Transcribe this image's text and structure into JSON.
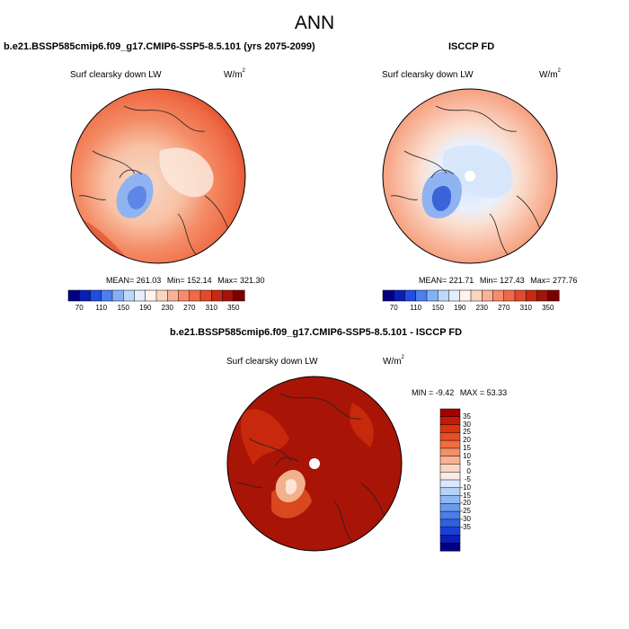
{
  "main_title": "ANN",
  "panels": [
    {
      "title": "b.e21.BSSP585cmip6.f09_g17.CMIP6-SSP5-8.5.101 (yrs 2075-2099)",
      "variable": "Surf clearsky down LW",
      "units_base": "W/m",
      "units_exp": "2",
      "stats": {
        "mean_label": "MEAN=",
        "mean": "261.03",
        "min_label": "Min=",
        "min": "152.14",
        "max_label": "Max=",
        "max": "321.30"
      }
    },
    {
      "title": "ISCCP FD",
      "variable": "Surf clearsky down LW",
      "units_base": "W/m",
      "units_exp": "2",
      "stats": {
        "mean_label": "MEAN=",
        "mean": "221.71",
        "min_label": "Min=",
        "min": "127.43",
        "max_label": "Max=",
        "max": "277.76"
      }
    },
    {
      "title": "b.e21.BSSP585cmip6.f09_g17.CMIP6-SSP5-8.5.101 - ISCCP FD",
      "variable": "Surf clearsky down LW",
      "units_base": "W/m",
      "units_exp": "2",
      "stats": {
        "min_label": "MIN =",
        "min": "-9.42",
        "max_label": "MAX =",
        "max": "53.33"
      }
    }
  ],
  "colorbar_abs": {
    "ticks": [
      "70",
      "110",
      "150",
      "190",
      "230",
      "270",
      "310",
      "350"
    ],
    "colors": [
      "#000080",
      "#0a1eb5",
      "#1f4ee0",
      "#4a80f0",
      "#85b0f5",
      "#bed8fb",
      "#e4eefd",
      "#fff4ec",
      "#fcd5c0",
      "#f9b296",
      "#f68c6c",
      "#f06a48",
      "#e14a2c",
      "#c72a14",
      "#a2140a",
      "#7a0000"
    ]
  },
  "colorbar_diff": {
    "ticks": [
      "35",
      "30",
      "25",
      "20",
      "15",
      "10",
      "5",
      "0",
      "-5",
      "-10",
      "-15",
      "-20",
      "-25",
      "-30",
      "-35"
    ],
    "colors": [
      "#a40000",
      "#c31b05",
      "#dc3410",
      "#ea4e22",
      "#f26c3e",
      "#f68e66",
      "#f9b294",
      "#fcd6c2",
      "#f8eae4",
      "#d9e8fb",
      "#b4d1f8",
      "#8fb7f2",
      "#6a9bec",
      "#4a7ee8",
      "#2f5fe2",
      "#1a3fd8",
      "#0a1eb8",
      "#000080"
    ]
  },
  "chart_data": [
    {
      "type": "heatmap",
      "projection": "north polar stereographic",
      "title": "b.e21.BSSP585cmip6.f09_g17.CMIP6-SSP5-8.5.101 (yrs 2075-2099)",
      "variable": "Surf clearsky down LW",
      "units": "W/m^2",
      "mean": 261.03,
      "min": 152.14,
      "max": 321.3,
      "colorbar_levels": [
        70,
        110,
        150,
        190,
        230,
        270,
        310,
        350
      ]
    },
    {
      "type": "heatmap",
      "projection": "north polar stereographic",
      "title": "ISCCP FD",
      "variable": "Surf clearsky down LW",
      "units": "W/m^2",
      "mean": 221.71,
      "min": 127.43,
      "max": 277.76,
      "colorbar_levels": [
        70,
        110,
        150,
        190,
        230,
        270,
        310,
        350
      ]
    },
    {
      "type": "heatmap",
      "projection": "north polar stereographic",
      "title": "b.e21.BSSP585cmip6.f09_g17.CMIP6-SSP5-8.5.101 - ISCCP FD",
      "variable": "Surf clearsky down LW",
      "units": "W/m^2",
      "min": -9.42,
      "max": 53.33,
      "colorbar_levels": [
        -35,
        -30,
        -25,
        -20,
        -15,
        -10,
        -5,
        0,
        5,
        10,
        15,
        20,
        25,
        30,
        35
      ]
    }
  ]
}
